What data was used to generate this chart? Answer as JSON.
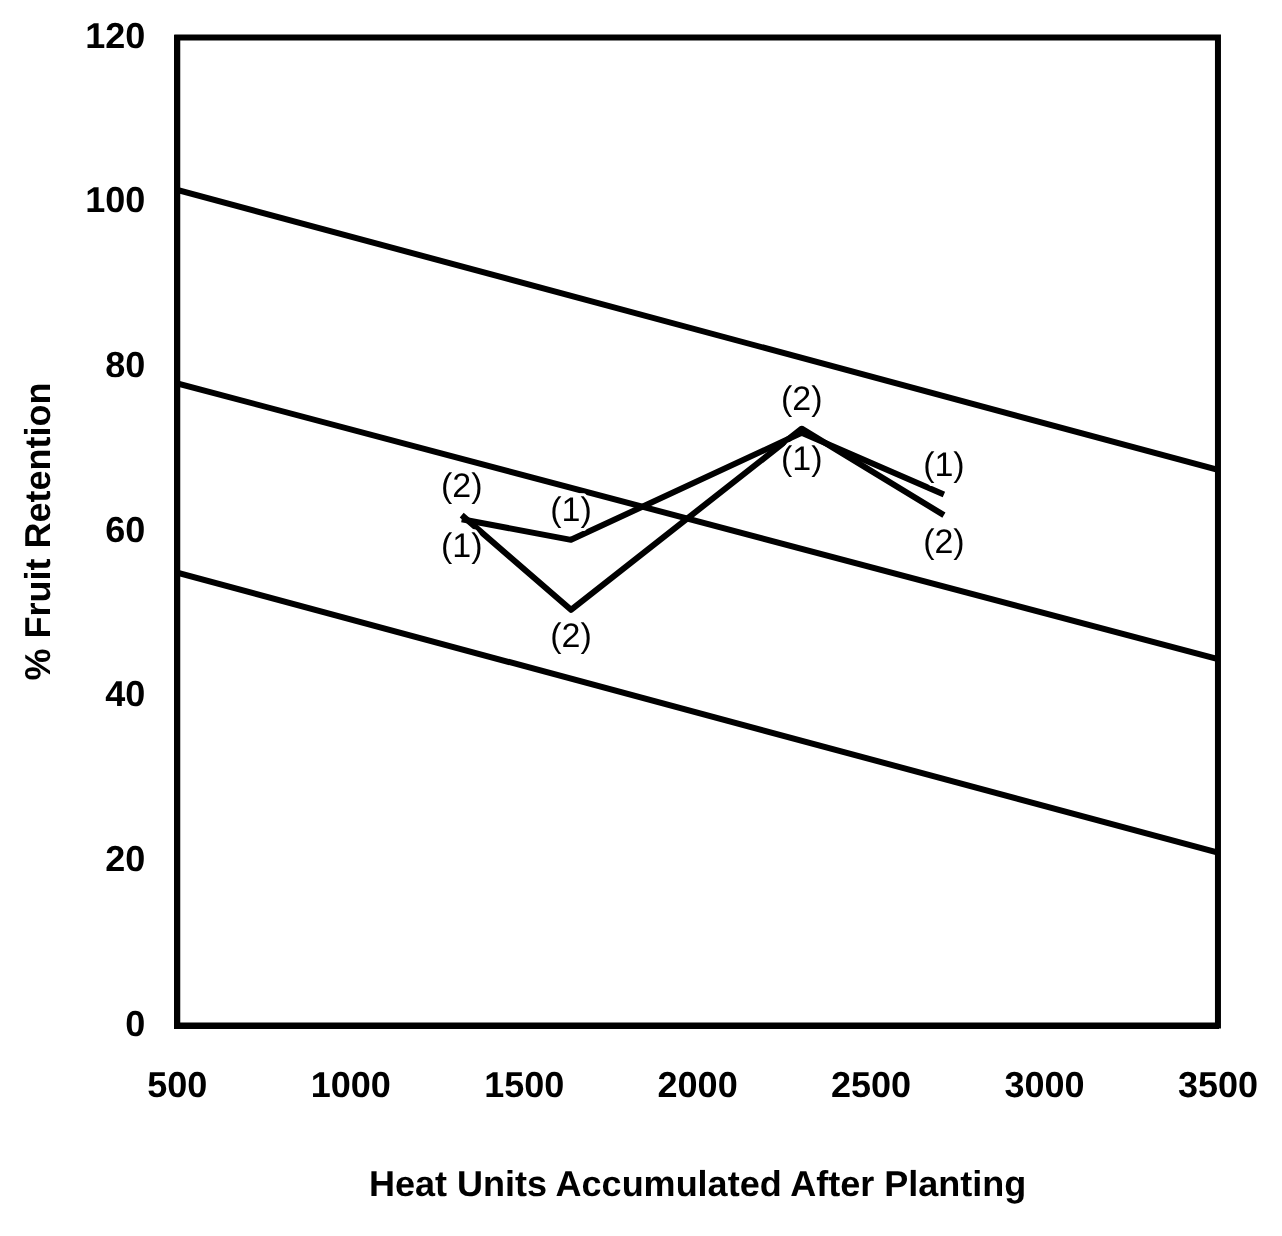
{
  "chart_data": {
    "type": "line",
    "xlabel": "Heat Units Accumulated After Planting",
    "ylabel": "% Fruit Retention",
    "xlim": [
      500,
      3500
    ],
    "xticks": [
      500,
      1000,
      1500,
      2000,
      2500,
      3000,
      3500
    ],
    "ylim": [
      0,
      120
    ],
    "yticks": [
      0,
      20,
      40,
      60,
      80,
      100,
      120
    ],
    "marker": "none",
    "grid": false,
    "legend": false,
    "series": [
      {
        "color": "#000000",
        "x": [
          1320,
          1635,
          2300,
          2710
        ],
        "values": [
          61.5,
          59,
          72,
          64.5
        ]
      },
      {
        "color": "#000000",
        "x": [
          1320,
          1635,
          2300,
          2710
        ],
        "values": [
          62,
          50.5,
          72.5,
          62
        ]
      },
      {
        "color": "#000000",
        "x": [
          500,
          3500
        ],
        "values": [
          101.5,
          67.5
        ]
      },
      {
        "color": "#000000",
        "x": [
          500,
          3500
        ],
        "values": [
          78,
          44.5
        ]
      },
      {
        "color": "#000000",
        "x": [
          500,
          3500
        ],
        "values": [
          55,
          21
        ]
      }
    ],
    "annotations": [
      {
        "text": "(1)",
        "x": 1320,
        "y": 61.5
      },
      {
        "text": "(1)",
        "x": 1635,
        "y": 59
      },
      {
        "text": "(1)",
        "x": 2300,
        "y": 72
      },
      {
        "text": "(1)",
        "x": 2710,
        "y": 64.5
      },
      {
        "text": "(2)",
        "x": 1320,
        "y": 62
      },
      {
        "text": "(2)",
        "x": 1635,
        "y": 50.5
      },
      {
        "text": "(2)",
        "x": 2300,
        "y": 72.5
      },
      {
        "text": "(2)",
        "x": 2710,
        "y": 62
      }
    ]
  }
}
